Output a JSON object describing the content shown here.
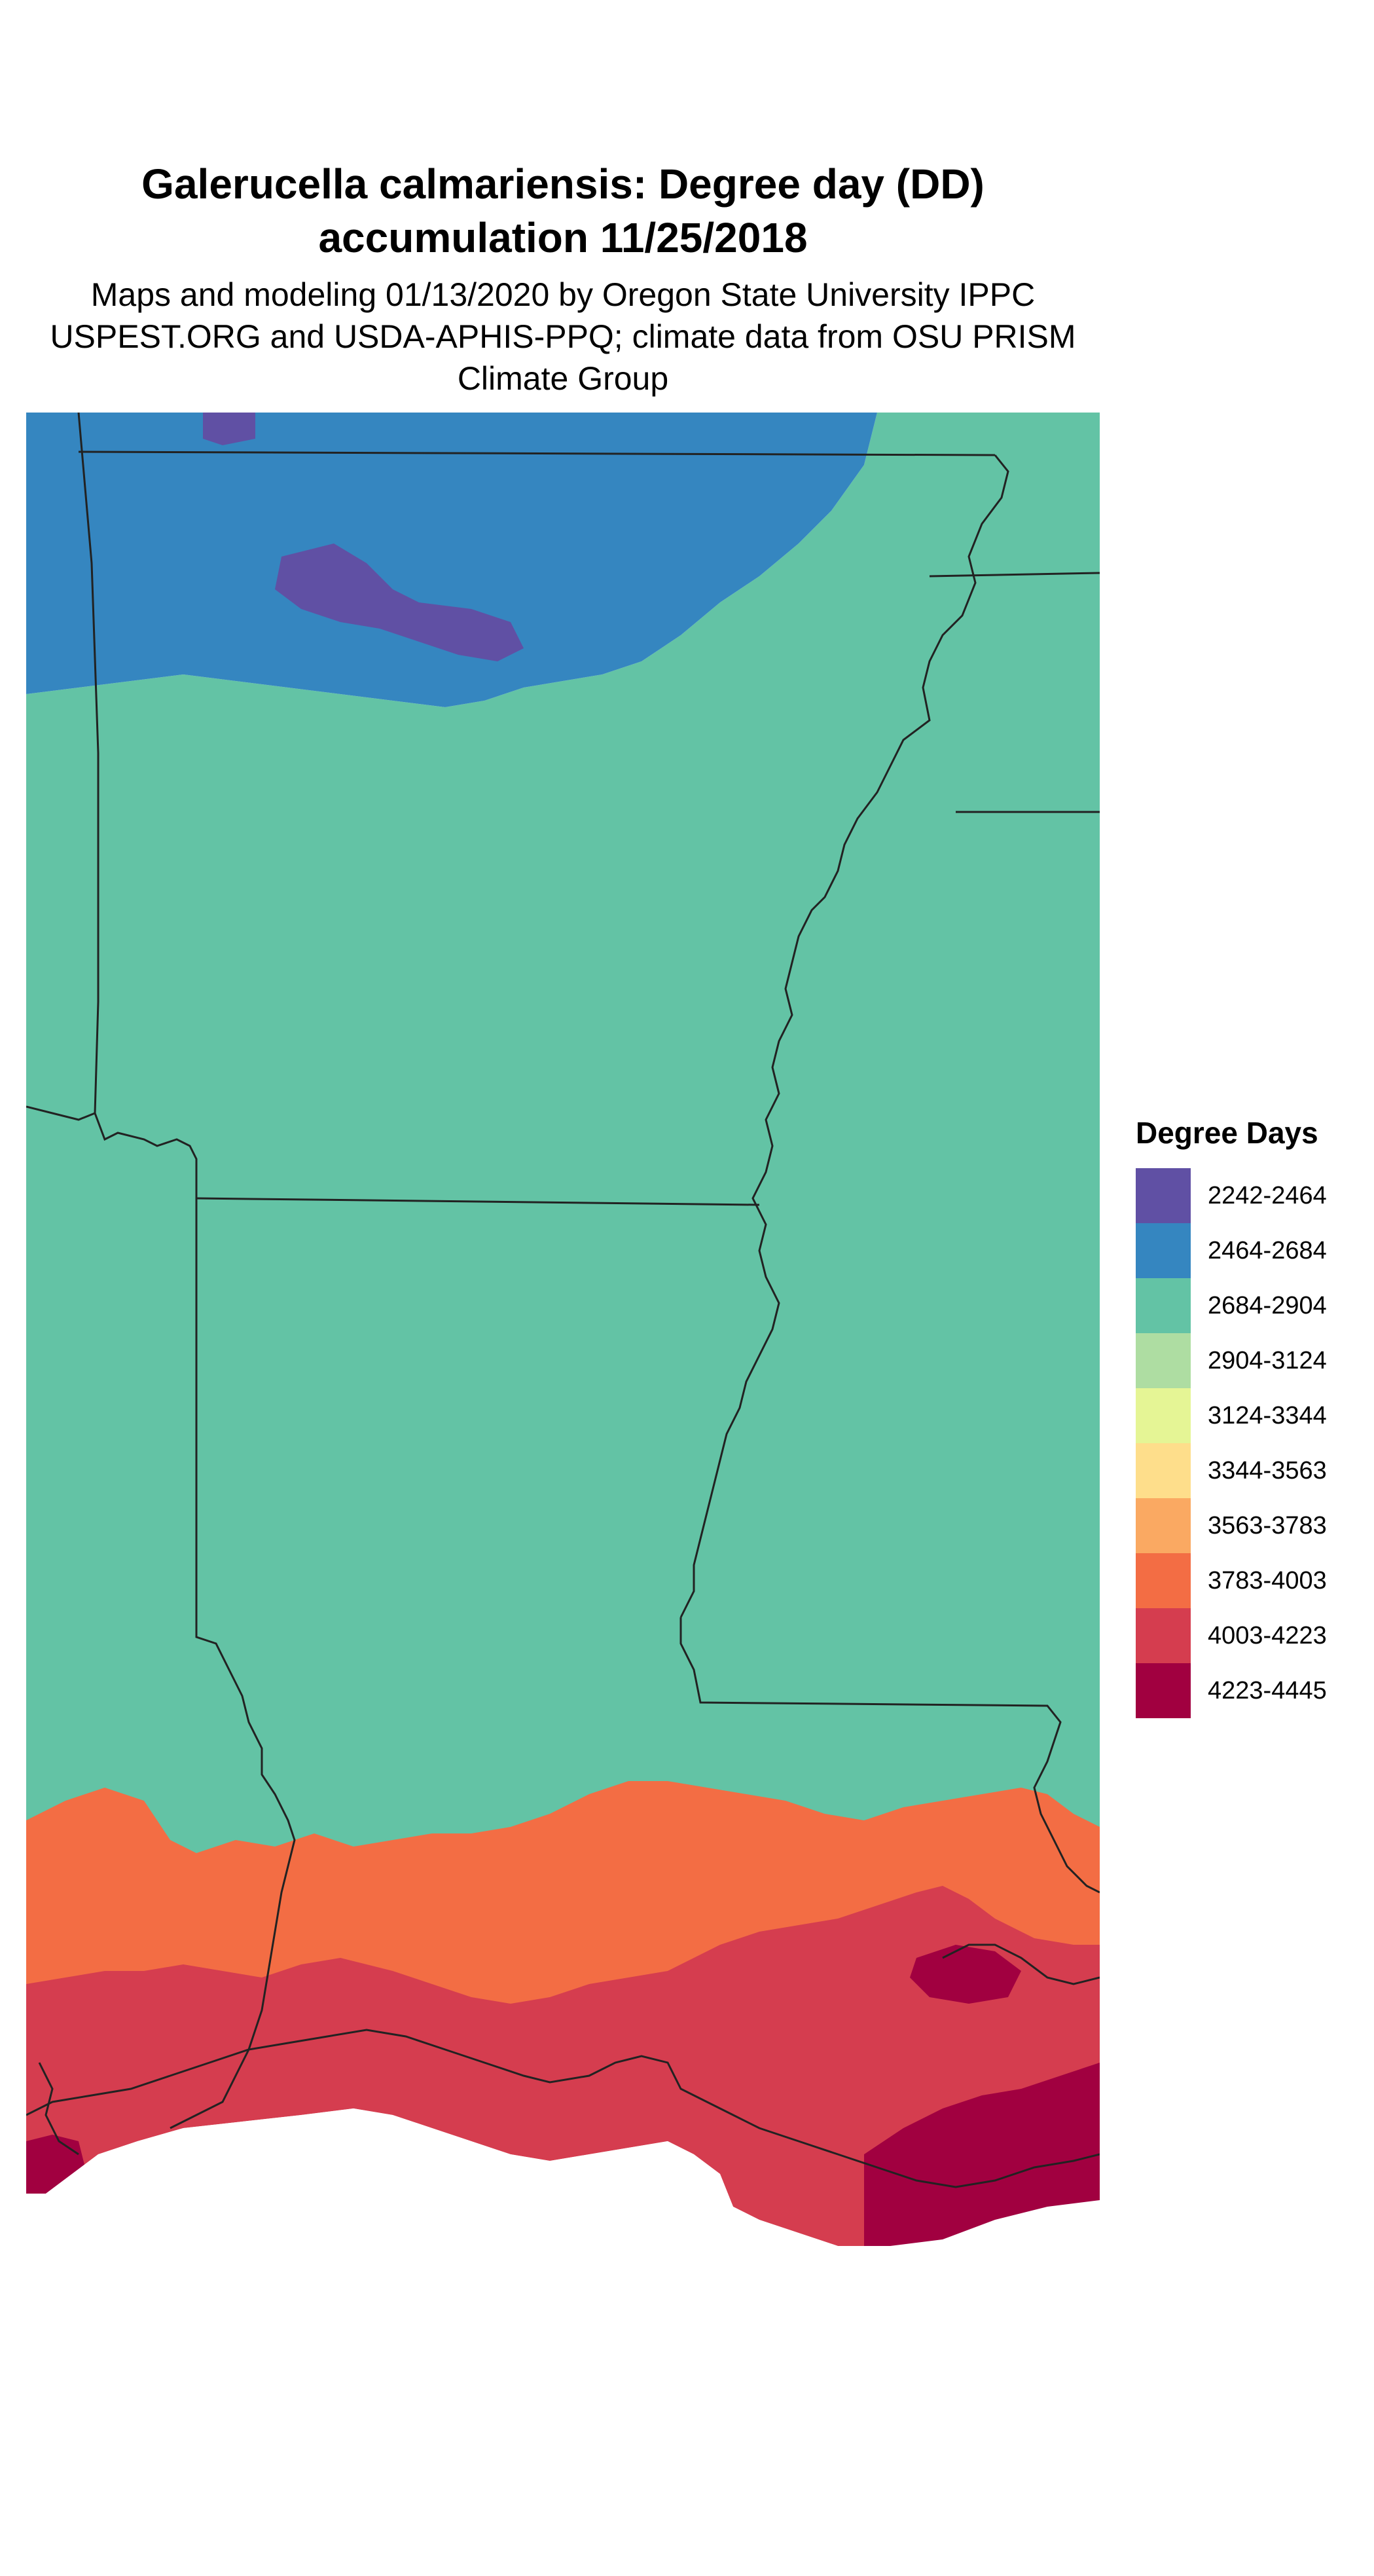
{
  "title": "Galerucella calmariensis: Degree day (DD) accumulation 11/25/2018",
  "subtitle": "Maps and modeling 01/13/2020 by Oregon State University IPPC USPEST.ORG and USDA-APHIS-PPQ; climate data from OSU PRISM Climate Group",
  "legend": {
    "title": "Degree Days",
    "items": [
      {
        "label": "2242-2464",
        "color": "#6050A4"
      },
      {
        "label": "2464-2684",
        "color": "#3586C0"
      },
      {
        "label": "2684-2904",
        "color": "#63C3A5"
      },
      {
        "label": "2904-3124",
        "color": "#AEDDA2"
      },
      {
        "label": "3124-3344",
        "color": "#E5F595"
      },
      {
        "label": "3344-3563",
        "color": "#FEDE8B"
      },
      {
        "label": "3563-3783",
        "color": "#FAA962"
      },
      {
        "label": "3783-4003",
        "color": "#F36D44"
      },
      {
        "label": "4003-4223",
        "color": "#D53D4F"
      },
      {
        "label": "4223-4445",
        "color": "#A10040"
      }
    ]
  }
}
